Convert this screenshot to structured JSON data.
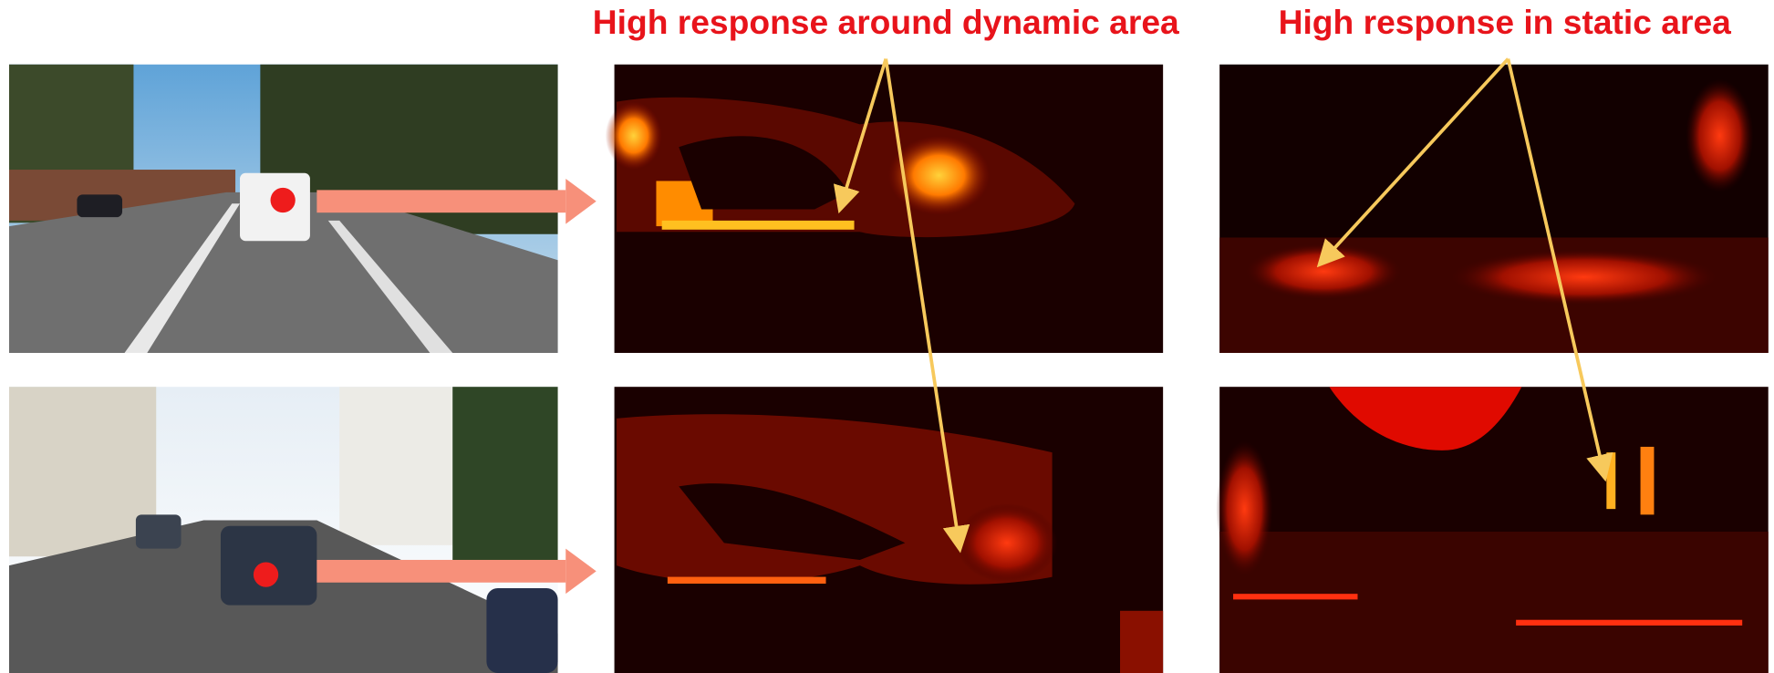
{
  "annotations": {
    "dynamic": "High response around dynamic area",
    "static": "High response in static area"
  }
}
